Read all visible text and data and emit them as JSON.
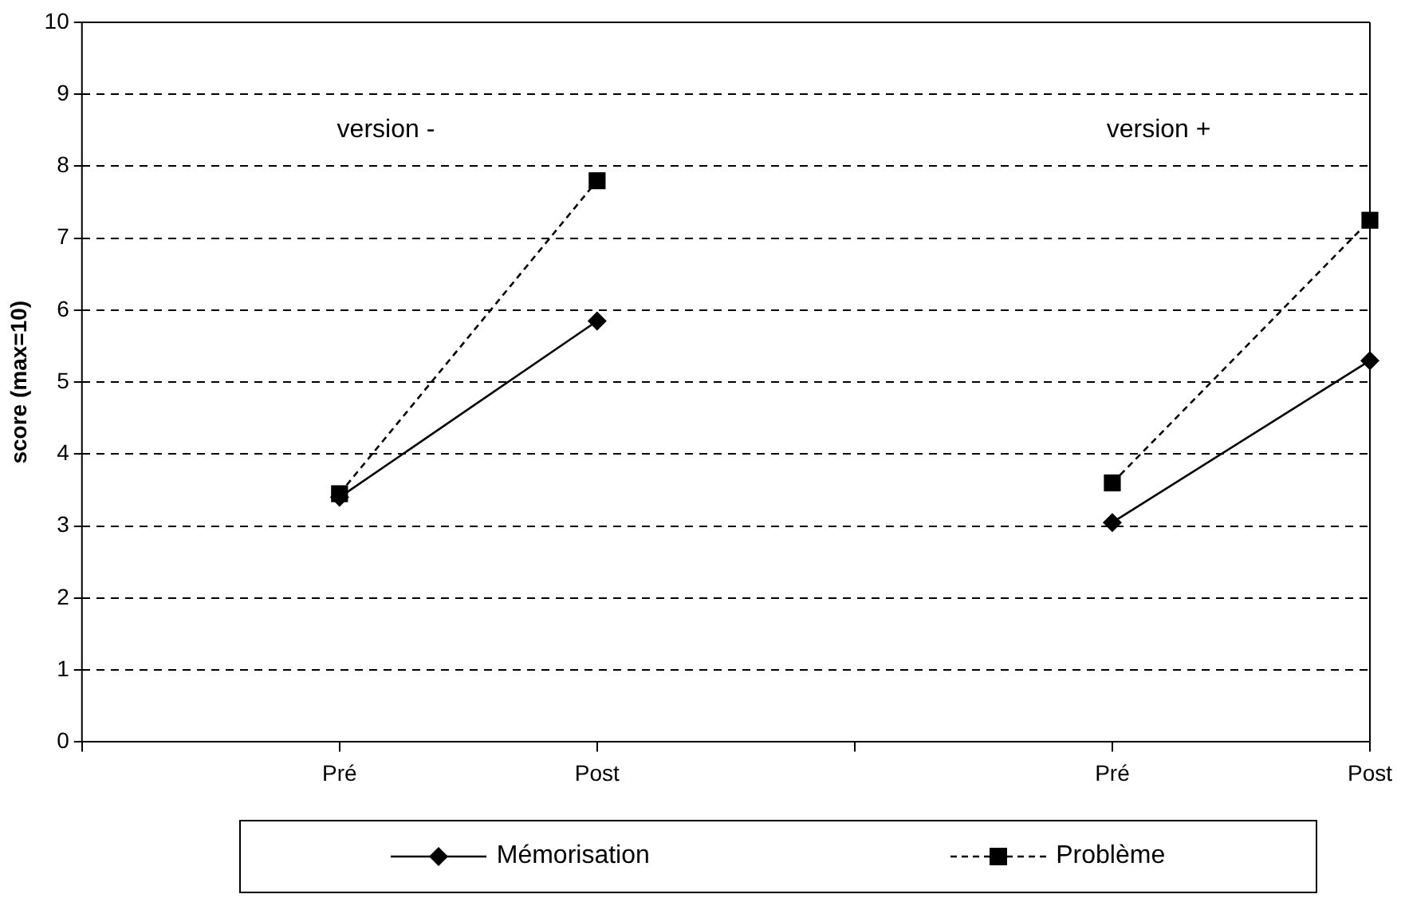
{
  "chart_data": {
    "type": "line",
    "ylabel": "score (max=10)",
    "categories": [
      null,
      "Pré",
      "Post",
      null,
      "Pré",
      "Post"
    ],
    "series": [
      {
        "name": "Mémorisation",
        "color": "#000000",
        "marker": "diamond",
        "line_style": "solid",
        "values": [
          null,
          3.4,
          5.85,
          null,
          3.05,
          5.3
        ]
      },
      {
        "name": "Problème",
        "color": "#000000",
        "marker": "square",
        "line_style": "dashed",
        "values": [
          null,
          3.45,
          7.8,
          null,
          3.6,
          7.25
        ]
      }
    ],
    "ylim": [
      0,
      10
    ],
    "yticks": [
      0,
      1,
      2,
      3,
      4,
      5,
      6,
      7,
      8,
      9,
      10
    ],
    "grid": "y",
    "legend": "bottom",
    "annotations": [
      "version -",
      "version +"
    ]
  }
}
